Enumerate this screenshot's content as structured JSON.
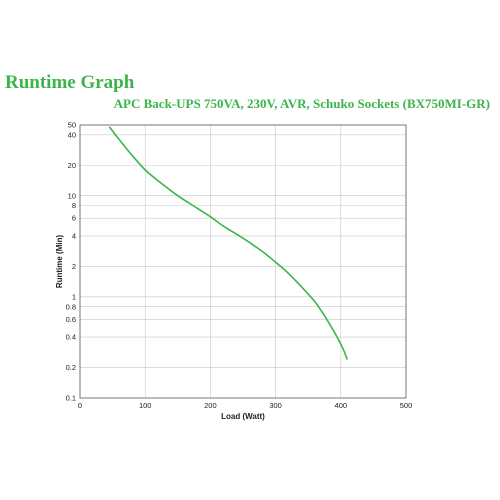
{
  "chart_data": {
    "type": "line",
    "title": "Runtime Graph",
    "subtitle": "APC Back-UPS 750VA, 230V, AVR, Schuko Sockets (BX750MI-GR)",
    "xlabel": "Load (Watt)",
    "ylabel": "Runtime (Min)",
    "xlim": [
      0,
      500
    ],
    "ylim": [
      0.1,
      50
    ],
    "yscale": "log",
    "xticks": [
      0,
      100,
      200,
      300,
      400,
      500
    ],
    "yticks": [
      0.1,
      0.2,
      0.4,
      0.6,
      0.8,
      1,
      2,
      4,
      6,
      8,
      10,
      20,
      40,
      50
    ],
    "grid": true,
    "line_color": "#3bb54a",
    "series": [
      {
        "x": [
          45,
          60,
          80,
          100,
          120,
          150,
          180,
          200,
          220,
          250,
          280,
          300,
          320,
          340,
          360,
          375,
          390,
          400,
          405,
          410
        ],
        "y": [
          48,
          36,
          25,
          18,
          14,
          10,
          7.5,
          6.2,
          5.0,
          3.8,
          2.8,
          2.2,
          1.7,
          1.25,
          0.9,
          0.65,
          0.45,
          0.34,
          0.29,
          0.24
        ]
      }
    ]
  }
}
